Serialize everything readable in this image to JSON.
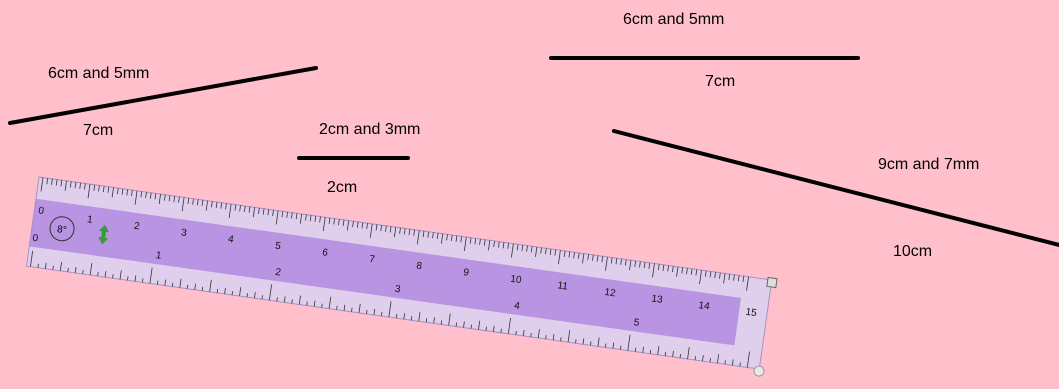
{
  "labels": {
    "l1_top": "6cm and 5mm",
    "l1_bottom": "7cm",
    "l2_top": "2cm and 3mm",
    "l2_bottom": "2cm",
    "l3_top": "6cm and 5mm",
    "l3_bottom": "7cm",
    "l4_top": "9cm and 7mm",
    "l4_bottom": "10cm"
  },
  "ruler": {
    "angle_text": "8°",
    "cm_numbers": [
      "0",
      "1",
      "2",
      "3",
      "4",
      "5",
      "6",
      "7",
      "8",
      "9",
      "10",
      "11",
      "12",
      "13",
      "14",
      "15"
    ],
    "inch_numbers": [
      "0",
      "1",
      "2",
      "3",
      "4",
      "5"
    ]
  },
  "colors": {
    "background": "#ffc0cb",
    "ruler_body": "#ddd0f0",
    "ruler_band": "#b08ae0",
    "rotate_handle": "#3a9a3a"
  }
}
